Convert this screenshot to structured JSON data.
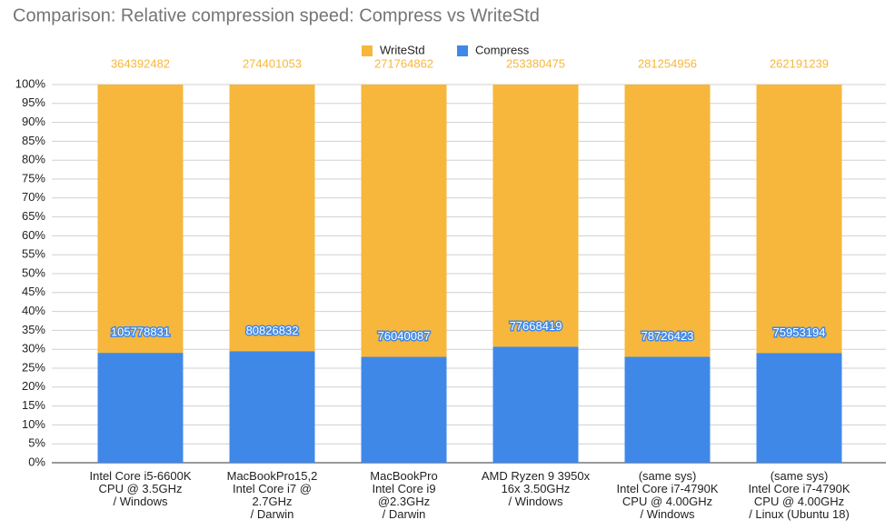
{
  "chart_data": {
    "type": "bar",
    "mode": "overlap-percent",
    "title": "Comparison: Relative compression speed: Compress vs WriteStd",
    "categories": [
      "Intel Core i5-6600K\nCPU @ 3.5GHz\n/ Windows",
      "MacBookPro15,2\nIntel Core i7 @\n2.7GHz\n/ Darwin",
      "MacBookPro\nIntel Core i9\n@2.3GHz\n/ Darwin",
      "AMD Ryzen 9 3950x\n16x 3.50GHz\n/ Windows",
      "(same sys)\nIntel Core i7-4790K\nCPU @ 4.00GHz\n/ Windows",
      "(same sys)\nIntel Core i7-4790K\nCPU @ 4.00GHz\n/ Linux (Ubuntu 18)"
    ],
    "series": [
      {
        "name": "WriteStd",
        "color": "#f6b73c",
        "values": [
          364392482,
          274401053,
          271764862,
          253380475,
          281254956,
          262191239
        ]
      },
      {
        "name": "Compress",
        "color": "#3f88e8",
        "values": [
          105778831,
          80826832,
          76040087,
          77668419,
          78726423,
          75953194
        ]
      }
    ],
    "ylim": [
      0,
      100
    ],
    "yticks": [
      {
        "value": 0,
        "label": "0%"
      },
      {
        "value": 5,
        "label": "5%"
      },
      {
        "value": 10,
        "label": "10%"
      },
      {
        "value": 15,
        "label": "15%"
      },
      {
        "value": 20,
        "label": "20%"
      },
      {
        "value": 25,
        "label": "25%"
      },
      {
        "value": 30,
        "label": "30%"
      },
      {
        "value": 35,
        "label": "35%"
      },
      {
        "value": 40,
        "label": "40%"
      },
      {
        "value": 45,
        "label": "45%"
      },
      {
        "value": 50,
        "label": "50%"
      },
      {
        "value": 55,
        "label": "55%"
      },
      {
        "value": 60,
        "label": "60%"
      },
      {
        "value": 65,
        "label": "65%"
      },
      {
        "value": 70,
        "label": "70%"
      },
      {
        "value": 75,
        "label": "75%"
      },
      {
        "value": 80,
        "label": "80%"
      },
      {
        "value": 85,
        "label": "85%"
      },
      {
        "value": 90,
        "label": "90%"
      },
      {
        "value": 95,
        "label": "95%"
      },
      {
        "value": 100,
        "label": "100%"
      }
    ],
    "grid": true,
    "legend": "top"
  }
}
